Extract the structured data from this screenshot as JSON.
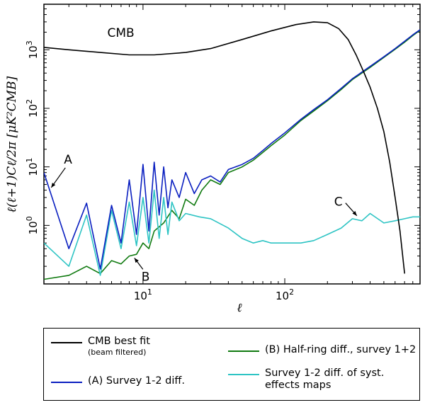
{
  "chart_data": {
    "type": "line",
    "xscale": "log",
    "yscale": "log",
    "xlim": [
      2,
      900
    ],
    "ylim": [
      0.1,
      6000
    ],
    "xlabel": "ℓ",
    "ylabel": "ℓ(ℓ+1)Cℓ/2π [μK²CMB]",
    "x_ticks": [
      {
        "value": 10,
        "base": "10",
        "exp": "1"
      },
      {
        "value": 100,
        "base": "10",
        "exp": "2"
      }
    ],
    "y_ticks": [
      {
        "value": 1,
        "base": "10",
        "exp": "0"
      },
      {
        "value": 10,
        "base": "10",
        "exp": "1"
      },
      {
        "value": 100,
        "base": "10",
        "exp": "2"
      },
      {
        "value": 1000,
        "base": "10",
        "exp": "3"
      }
    ],
    "series": [
      {
        "id": "cmb",
        "name": "CMB best fit",
        "note": "(beam filtered)",
        "color": "#000000",
        "x": [
          2,
          3,
          5,
          8,
          12,
          20,
          30,
          50,
          80,
          120,
          160,
          200,
          240,
          280,
          320,
          360,
          400,
          450,
          500,
          550,
          600,
          650,
          700
        ],
        "y": [
          1100,
          1000,
          900,
          820,
          820,
          900,
          1050,
          1500,
          2100,
          2700,
          3000,
          2900,
          2300,
          1500,
          800,
          420,
          230,
          100,
          40,
          12,
          3,
          0.8,
          0.15
        ]
      },
      {
        "id": "survey",
        "name": "(A) Survey 1-2 diff.",
        "color": "#0a1fc0",
        "x": [
          2,
          3,
          4,
          5,
          6,
          7,
          8,
          9,
          10,
          11,
          12,
          13,
          14,
          15,
          16,
          18,
          20,
          23,
          26,
          30,
          35,
          40,
          50,
          60,
          70,
          80,
          100,
          130,
          160,
          200,
          250,
          300,
          400,
          500,
          600,
          700,
          800,
          900
        ],
        "y": [
          8,
          0.4,
          2.4,
          0.18,
          2.2,
          0.5,
          6,
          0.7,
          11,
          0.8,
          12,
          1.5,
          10,
          2,
          6,
          3,
          8,
          3.5,
          6,
          7,
          5.5,
          9,
          11,
          14,
          19,
          25,
          38,
          65,
          95,
          140,
          220,
          320,
          520,
          760,
          1050,
          1400,
          1800,
          2200
        ]
      },
      {
        "id": "halfring",
        "name": "(B) Half-ring diff., survey 1+2",
        "color": "#107a10",
        "x": [
          2,
          3,
          4,
          5,
          6,
          7,
          8,
          9,
          10,
          11,
          12,
          14,
          16,
          18,
          20,
          23,
          26,
          30,
          35,
          40,
          50,
          60,
          80,
          100,
          130,
          160,
          200,
          250,
          300,
          400,
          500,
          600,
          700,
          800,
          900
        ],
        "y": [
          0.12,
          0.14,
          0.2,
          0.15,
          0.25,
          0.22,
          0.3,
          0.32,
          0.5,
          0.4,
          0.8,
          1.1,
          1.8,
          1.3,
          2.8,
          2.2,
          4,
          6,
          5,
          8,
          10,
          13,
          23,
          35,
          62,
          90,
          135,
          210,
          310,
          500,
          740,
          1020,
          1350,
          1750,
          2150
        ]
      },
      {
        "id": "syst",
        "name": "Survey 1-2 diff. of syst. effects maps",
        "color": "#2ec4c4",
        "x": [
          2,
          3,
          4,
          5,
          6,
          7,
          8,
          9,
          10,
          11,
          12,
          13,
          14,
          15,
          16,
          18,
          20,
          25,
          30,
          40,
          50,
          60,
          70,
          80,
          100,
          130,
          160,
          200,
          250,
          300,
          350,
          400,
          500,
          600,
          700,
          800,
          900
        ],
        "y": [
          0.5,
          0.2,
          1.5,
          0.14,
          1.8,
          0.4,
          2.5,
          0.45,
          3,
          0.5,
          4,
          0.6,
          3,
          0.7,
          2.5,
          1.2,
          1.6,
          1.4,
          1.3,
          0.9,
          0.6,
          0.5,
          0.55,
          0.5,
          0.5,
          0.5,
          0.55,
          0.7,
          0.9,
          1.3,
          1.2,
          1.6,
          1.1,
          1.2,
          1.3,
          1.4,
          1.4
        ]
      }
    ],
    "annotations": [
      {
        "id": "a",
        "text": "A",
        "target_series": "survey",
        "target_x": 2.2
      },
      {
        "id": "b",
        "text": "B",
        "target_series": "halfring",
        "target_x": 8.5
      },
      {
        "id": "c",
        "text": "C",
        "target_series": "syst",
        "target_x": 330
      },
      {
        "id": "cmb",
        "text": "CMB"
      }
    ]
  },
  "legend": {
    "cmb": {
      "label": "CMB best fit",
      "sub": "(beam filtered)"
    },
    "a": {
      "label": "(A) Survey 1-2 diff."
    },
    "b": {
      "label": "(B) Half-ring diff., survey 1+2"
    },
    "c": {
      "label": "Survey 1-2 diff. of syst. effects maps"
    }
  }
}
